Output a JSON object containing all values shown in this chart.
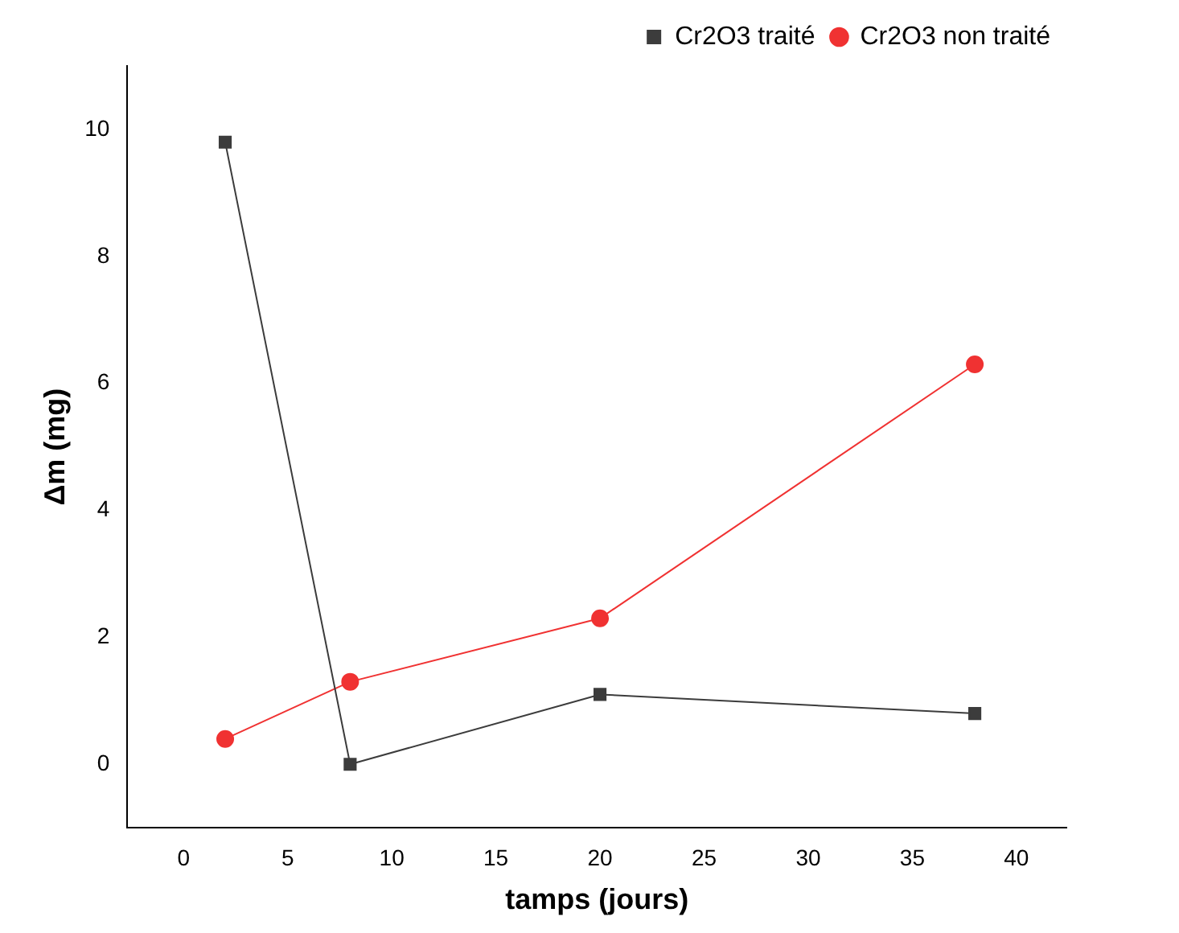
{
  "chart_data": {
    "type": "line",
    "xlabel": "tamps (jours)",
    "ylabel": "Δm (mg)",
    "xlim": [
      -2.7,
      42.4
    ],
    "xticks": [
      0,
      5,
      10,
      15,
      20,
      25,
      30,
      35,
      40
    ],
    "ylim": [
      -1,
      11
    ],
    "yticks": [
      0,
      2,
      4,
      6,
      8,
      10
    ],
    "grid": false,
    "legend": "top right",
    "line_style": "solid",
    "series": [
      {
        "name": "Cr2O3 traité",
        "color": "#3c3c3c",
        "marker": "square",
        "x": [
          2,
          8,
          20,
          38
        ],
        "values": [
          9.8,
          0,
          1.1,
          0.8
        ]
      },
      {
        "name": "Cr2O3 non traité",
        "color": "#f03232",
        "marker": "circle",
        "x": [
          2,
          8,
          20,
          38
        ],
        "values": [
          0.4,
          1.3,
          2.3,
          6.3
        ]
      }
    ]
  }
}
